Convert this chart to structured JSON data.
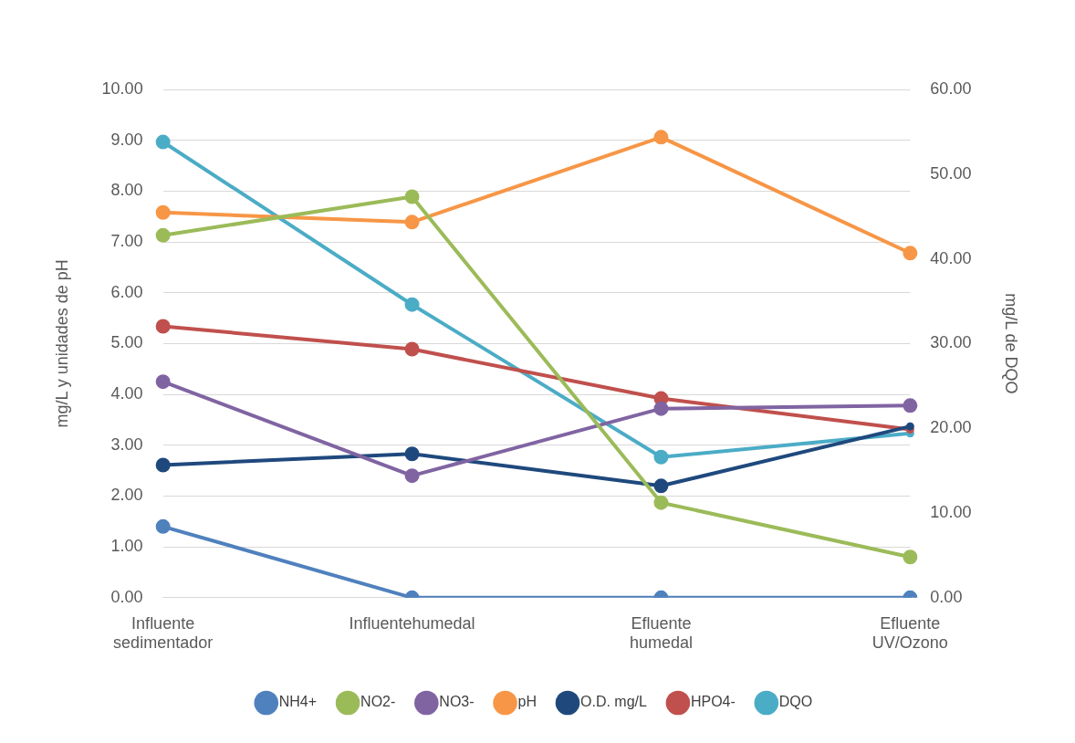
{
  "chart_data": {
    "type": "line",
    "ylabel": "mg/L y unidades de pH",
    "y2label": "mg/L de DQO",
    "categories": [
      "Influente sedimentador",
      "Influentehumedal",
      "Efluente humedal",
      "Efluente UV/Ozono"
    ],
    "series": [
      {
        "name": "NH4+",
        "color": "#4f81bd",
        "values": [
          1.4,
          0,
          0,
          0
        ]
      },
      {
        "name": "NO2-",
        "color": "#9bbb59",
        "values": [
          7.13,
          7.89,
          1.87,
          0.8
        ]
      },
      {
        "name": "NO3-",
        "color": "#8064a2",
        "values": [
          4.25,
          2.4,
          3.72,
          3.78
        ]
      },
      {
        "name": "pH",
        "color": "#f79646",
        "values": [
          7.58,
          7.39,
          9.06,
          6.78
        ]
      },
      {
        "name": "O.D. mg/L",
        "color": "#1f497d",
        "values": [
          2.61,
          2.83,
          2.2,
          3.37
        ]
      },
      {
        "name": "HPO4-",
        "color": "#c0504d",
        "values": [
          5.34,
          4.89,
          3.92,
          3.31
        ]
      },
      {
        "name": "DQO",
        "color": "#4bacc6",
        "axis": "y2",
        "values": [
          53.8,
          34.6,
          16.6,
          19.4
        ]
      }
    ],
    "ylim": [
      0,
      10
    ],
    "yticks": [
      {
        "value": 0,
        "label": "0.00"
      },
      {
        "value": 1,
        "label": "1.00"
      },
      {
        "value": 2,
        "label": "2.00"
      },
      {
        "value": 3,
        "label": "3.00"
      },
      {
        "value": 4,
        "label": "4.00"
      },
      {
        "value": 5,
        "label": "5.00"
      },
      {
        "value": 6,
        "label": "6.00"
      },
      {
        "value": 7,
        "label": "7.00"
      },
      {
        "value": 8,
        "label": "8.00"
      },
      {
        "value": 9,
        "label": "9.00"
      },
      {
        "value": 10,
        "label": "10.00"
      }
    ],
    "y2lim": [
      0,
      60
    ],
    "y2ticks": [
      {
        "value": 0,
        "label": "0.00"
      },
      {
        "value": 10,
        "label": "10.00"
      },
      {
        "value": 20,
        "label": "20.00"
      },
      {
        "value": 30,
        "label": "30.00"
      },
      {
        "value": 40,
        "label": "40.00"
      },
      {
        "value": 50,
        "label": "50.00"
      },
      {
        "value": 60,
        "label": "60.00"
      }
    ],
    "grid": "y",
    "legend": "bottom",
    "marker": "circle",
    "line_style": "solid"
  }
}
